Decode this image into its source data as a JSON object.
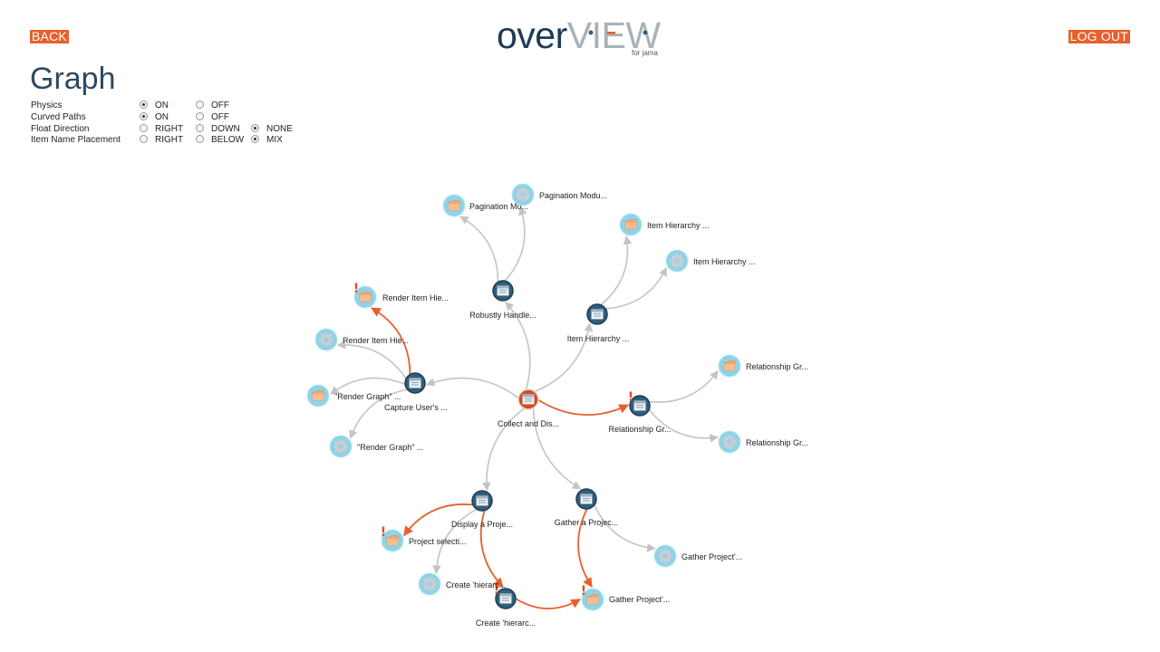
{
  "header": {
    "back_label": "BACK",
    "logout_label": "LOG OUT",
    "logo_part1": "over",
    "logo_part2": "VIEW",
    "logo_sub": "for jama"
  },
  "page_title": "Graph",
  "options": [
    {
      "label": "Physics",
      "choices": [
        {
          "label": "ON",
          "checked": true
        },
        {
          "label": "OFF",
          "checked": false
        }
      ]
    },
    {
      "label": "Curved Paths",
      "choices": [
        {
          "label": "ON",
          "checked": true
        },
        {
          "label": "OFF",
          "checked": false
        }
      ]
    },
    {
      "label": "Float Direction",
      "choices": [
        {
          "label": "RIGHT",
          "checked": false
        },
        {
          "label": "DOWN",
          "checked": false
        },
        {
          "label": "NONE",
          "checked": true
        }
      ]
    },
    {
      "label": "Item Name Placement",
      "choices": [
        {
          "label": "RIGHT",
          "checked": false
        },
        {
          "label": "BELOW",
          "checked": false
        },
        {
          "label": "MIX",
          "checked": true
        }
      ]
    }
  ],
  "colors": {
    "accent": "#e8602c",
    "root_node": "#c8512a",
    "hub_node": "#2f5f7e",
    "leaf_node": "#8ed3e8",
    "edge": "#c4c4c4",
    "edge_alert": "#e8602c",
    "warning": "#e84a1c"
  },
  "graph": {
    "nodes": [
      {
        "id": "collect",
        "label": "Collect and Dis...",
        "type": "root",
        "icon": "window-icon"
      },
      {
        "id": "robust",
        "label": "Robustly Handle...",
        "type": "hub",
        "icon": "window-icon"
      },
      {
        "id": "hier",
        "label": "Item Hierarchy ...",
        "type": "hub",
        "icon": "window-icon"
      },
      {
        "id": "capture",
        "label": "Capture User's ...",
        "type": "hub",
        "icon": "window-icon"
      },
      {
        "id": "rel",
        "label": "Relationship Gr...",
        "type": "hub",
        "icon": "window-icon",
        "warning": true
      },
      {
        "id": "display",
        "label": "Display a Proje...",
        "type": "hub",
        "icon": "window-icon"
      },
      {
        "id": "gather",
        "label": "Gather a Projec...",
        "type": "hub",
        "icon": "window-icon"
      },
      {
        "id": "createh",
        "label": "Create 'hierarc...",
        "type": "hub",
        "icon": "window-icon",
        "warning": true
      },
      {
        "id": "pagmod1",
        "label": "Pagination Mo...",
        "type": "leaf",
        "icon": "folder-icon"
      },
      {
        "id": "pagmod2",
        "label": "Pagination Modu...",
        "type": "leaf",
        "icon": "gear-icon"
      },
      {
        "id": "ih1",
        "label": "Item Hierarchy ...",
        "type": "leaf",
        "icon": "folder-icon"
      },
      {
        "id": "ih2",
        "label": "Item Hierarchy ...",
        "type": "leaf",
        "icon": "gear-icon"
      },
      {
        "id": "rih1",
        "label": "Render Item Hie...",
        "type": "leaf",
        "icon": "folder-icon",
        "warning": true
      },
      {
        "id": "rih2",
        "label": "Render Item Hie...",
        "type": "leaf",
        "icon": "gear-icon"
      },
      {
        "id": "rg1",
        "label": "\"Render Graph\" ...",
        "type": "leaf",
        "icon": "folder-icon"
      },
      {
        "id": "rg2",
        "label": "\"Render Graph\" ...",
        "type": "leaf",
        "icon": "gear-icon"
      },
      {
        "id": "relg1",
        "label": "Relationship Gr...",
        "type": "leaf",
        "icon": "folder-icon"
      },
      {
        "id": "relg2",
        "label": "Relationship Gr...",
        "type": "leaf",
        "icon": "gear-icon"
      },
      {
        "id": "projsel",
        "label": "Project selecti...",
        "type": "leaf",
        "icon": "folder-icon",
        "warning": true
      },
      {
        "id": "createh2",
        "label": "Create 'hierarc...",
        "type": "leaf",
        "icon": "gear-icon"
      },
      {
        "id": "gp1",
        "label": "Gather Project'...",
        "type": "leaf",
        "icon": "gear-icon"
      },
      {
        "id": "gp2",
        "label": "Gather Project'...",
        "type": "leaf",
        "icon": "folder-icon",
        "warning": true
      }
    ],
    "edges": [
      {
        "from": "collect",
        "to": "robust",
        "alert": false
      },
      {
        "from": "collect",
        "to": "hier",
        "alert": false
      },
      {
        "from": "collect",
        "to": "capture",
        "alert": false
      },
      {
        "from": "collect",
        "to": "rel",
        "alert": true
      },
      {
        "from": "collect",
        "to": "display",
        "alert": false
      },
      {
        "from": "collect",
        "to": "gather",
        "alert": false
      },
      {
        "from": "robust",
        "to": "pagmod1",
        "alert": false
      },
      {
        "from": "robust",
        "to": "pagmod2",
        "alert": false
      },
      {
        "from": "hier",
        "to": "ih1",
        "alert": false
      },
      {
        "from": "hier",
        "to": "ih2",
        "alert": false
      },
      {
        "from": "capture",
        "to": "rih1",
        "alert": true
      },
      {
        "from": "capture",
        "to": "rih2",
        "alert": false
      },
      {
        "from": "capture",
        "to": "rg1",
        "alert": false
      },
      {
        "from": "capture",
        "to": "rg2",
        "alert": false
      },
      {
        "from": "rel",
        "to": "relg1",
        "alert": false
      },
      {
        "from": "rel",
        "to": "relg2",
        "alert": false
      },
      {
        "from": "display",
        "to": "projsel",
        "alert": true
      },
      {
        "from": "display",
        "to": "createh2",
        "alert": false
      },
      {
        "from": "display",
        "to": "createh",
        "alert": true
      },
      {
        "from": "gather",
        "to": "gp1",
        "alert": false
      },
      {
        "from": "gather",
        "to": "gp2",
        "alert": true
      },
      {
        "from": "createh",
        "to": "gp2",
        "alert": true
      }
    ]
  }
}
